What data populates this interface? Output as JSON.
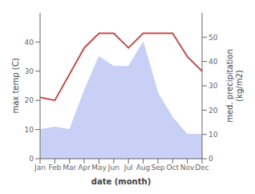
{
  "chart_data": {
    "type": "line",
    "xlabel": "date (month)",
    "ylabel": "max temp (C)",
    "y2label": "med. precipitation\n(kg/m2)",
    "categories": [
      "Jan",
      "Feb",
      "Mar",
      "Apr",
      "May",
      "Jun",
      "Jul",
      "Aug",
      "Sep",
      "Oct",
      "Nov",
      "Dec"
    ],
    "series": [
      {
        "type": "line",
        "color": "#c0504d",
        "values": [
          21,
          20,
          29,
          38,
          43,
          43,
          38,
          43,
          43,
          43,
          35,
          30
        ]
      },
      {
        "type": "area",
        "axis": "y2",
        "color": "#c8d0f5",
        "values": [
          12,
          13,
          12,
          28,
          42,
          38,
          38,
          48,
          27,
          17,
          10,
          10
        ]
      }
    ],
    "ylim": [
      0,
      50
    ],
    "yticks": [
      0,
      10,
      20,
      30,
      40
    ],
    "y2lim": [
      0,
      60
    ],
    "y2ticks": [
      0,
      10,
      20,
      30,
      40,
      50
    ],
    "grid": false
  }
}
